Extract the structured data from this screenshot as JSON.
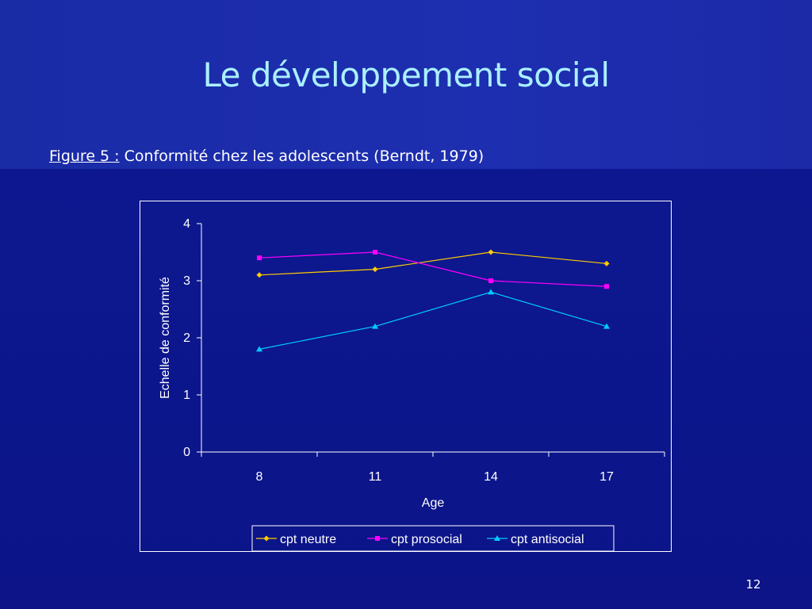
{
  "slide": {
    "title": "Le développement social",
    "caption_label": "Figure 5 :",
    "caption_text": " Conformité chez les adolescents (Berndt, 1979)",
    "page_number": "12",
    "colors": {
      "background": "#0f1690",
      "title": "#aaf0ff",
      "text": "#ffffff"
    }
  },
  "chart_data": {
    "type": "line",
    "categories": [
      "8",
      "11",
      "14",
      "17"
    ],
    "xlabel": "Age",
    "ylabel": "Echelle de conformité",
    "ylim": [
      0,
      4
    ],
    "yticks": [
      0,
      1,
      2,
      3,
      4
    ],
    "grid": false,
    "legend_position": "bottom",
    "series": [
      {
        "name": "cpt neutre",
        "values": [
          3.1,
          3.2,
          3.5,
          3.3
        ],
        "color": "#ffcc00",
        "marker": "diamond"
      },
      {
        "name": "cpt prosocial",
        "values": [
          3.4,
          3.5,
          3.0,
          2.9
        ],
        "color": "#ff00ff",
        "marker": "square"
      },
      {
        "name": "cpt antisocial",
        "values": [
          1.8,
          2.2,
          2.8,
          2.2
        ],
        "color": "#00ccff",
        "marker": "triangle"
      }
    ]
  }
}
